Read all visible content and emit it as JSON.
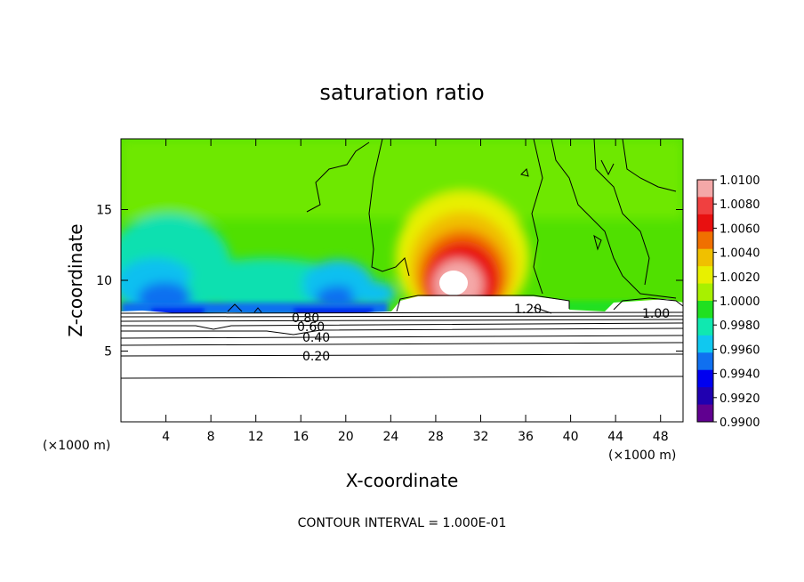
{
  "chart_data": {
    "type": "heatmap",
    "title": "saturation ratio",
    "xlabel": "X-coordinate",
    "ylabel": "Z-coordinate",
    "x_unit_left": "(×1000 m)",
    "x_unit_right": "(×1000 m)",
    "xlim": [
      0,
      50
    ],
    "ylim": [
      0,
      20
    ],
    "x_ticks": [
      4,
      8,
      12,
      16,
      20,
      24,
      28,
      32,
      36,
      40,
      44,
      48
    ],
    "y_ticks": [
      5,
      10,
      15
    ],
    "colorbar": {
      "labels": [
        "1.0100",
        "1.0080",
        "1.0060",
        "1.0040",
        "1.0020",
        "1.0000",
        "0.9980",
        "0.9960",
        "0.9940",
        "0.9920",
        "0.9900"
      ],
      "colors": [
        "#f4a8a8",
        "#f04040",
        "#e81010",
        "#f07000",
        "#f0c000",
        "#e8f000",
        "#a8f000",
        "#20e020",
        "#10e8b0",
        "#10c8f0",
        "#1070f0",
        "#0000f0",
        "#2000b0",
        "#600090"
      ]
    },
    "contour_labels": [
      "0.80",
      "0.60",
      "0.40",
      "0.20",
      "1.20",
      "1.00"
    ],
    "footer": "CONTOUR INTERVAL = 1.000E-01"
  }
}
